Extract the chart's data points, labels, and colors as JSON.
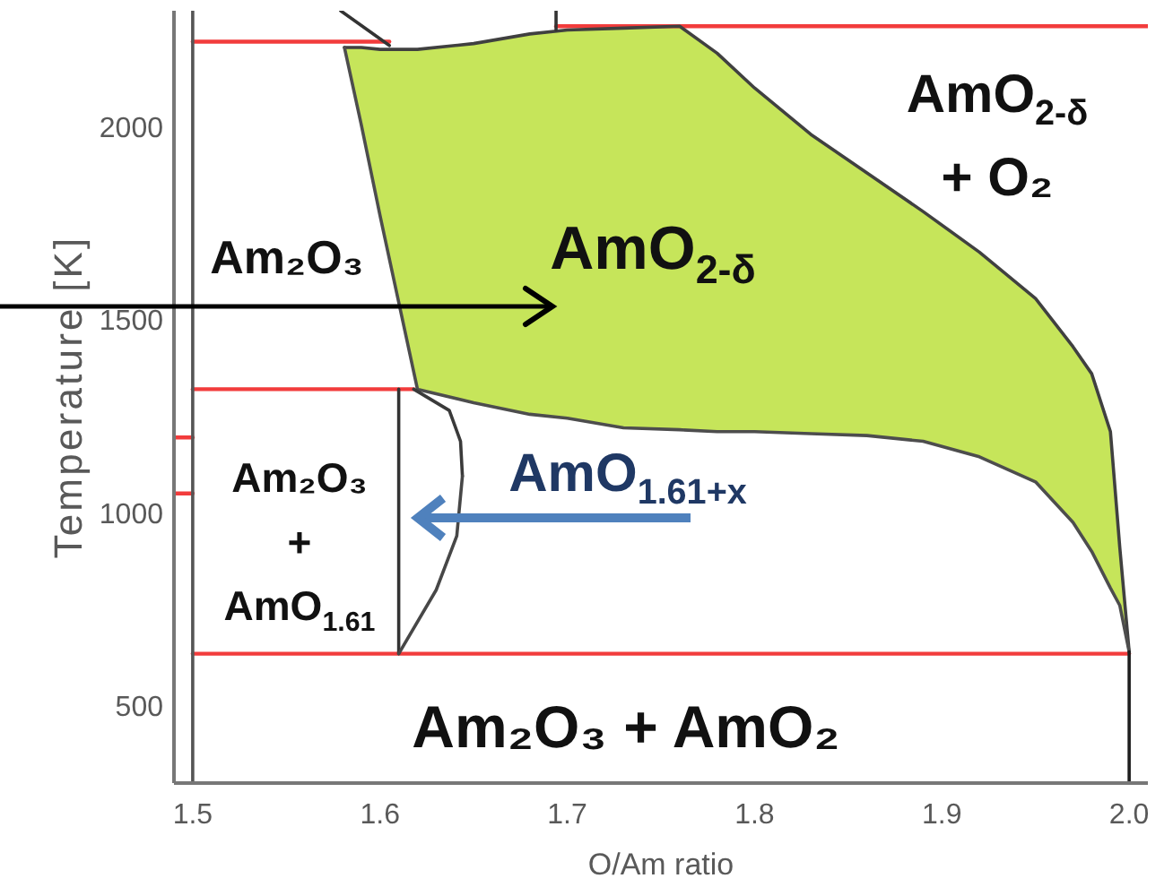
{
  "chart_data": {
    "type": "line",
    "xlabel": "O/Am ratio",
    "ylabel": "Temperature [K]",
    "xlim": [
      1.49,
      2.01
    ],
    "ylim": [
      300,
      2300
    ],
    "xticks": [
      1.5,
      1.6,
      1.7,
      1.8,
      1.9,
      {
        "value": 2.0,
        "label": "2.0"
      }
    ],
    "yticks": [
      500,
      1000,
      1500,
      2000
    ],
    "marker": "none",
    "series": [
      {
        "type": "area",
        "color": "#c6e55a",
        "x": [
          1.581,
          1.59,
          1.6,
          1.61,
          1.62,
          1.65,
          1.68,
          1.7,
          1.73,
          1.76,
          1.78,
          1.8,
          1.83,
          1.86,
          1.89,
          1.92,
          1.95,
          1.97,
          1.98,
          1.99,
          1.995,
          2.0
        ],
        "values": [
          null,
          null,
          null,
          null,
          null,
          null,
          null,
          null,
          null,
          null,
          null,
          null,
          null,
          null,
          null,
          null,
          null,
          null,
          null,
          null,
          null,
          null
        ],
        "lower": [
          2205,
          2005,
          1770,
          1545,
          1320,
          1285,
          1255,
          1245,
          1220,
          1215,
          1210,
          1210,
          1205,
          1200,
          1185,
          1145,
          1080,
          975,
          900,
          805,
          760,
          640
        ],
        "upper": [
          2205,
          2205,
          2200,
          2200,
          2200,
          2215,
          2240,
          2250,
          2255,
          2260,
          2190,
          2100,
          1980,
          1880,
          1780,
          1675,
          1555,
          1430,
          1360,
          1210,
          910,
          640
        ]
      },
      {
        "type": "line",
        "color": "#f23c3c",
        "x": [
          1.5,
          1.605
        ],
        "values": [
          2220,
          2220
        ]
      },
      {
        "type": "line",
        "color": "#f23c3c",
        "x": [
          1.694,
          2.01
        ],
        "values": [
          2260,
          2260
        ]
      },
      {
        "type": "line",
        "color": "#f23c3c",
        "x": [
          1.5,
          1.618
        ],
        "values": [
          1320,
          1320
        ]
      },
      {
        "type": "line",
        "color": "#f23c3c",
        "x": [
          1.5,
          2.0
        ],
        "values": [
          635,
          635
        ]
      },
      {
        "type": "line",
        "color": "#f23c3c",
        "x": [
          1.49,
          1.5
        ],
        "values": [
          1195,
          1195
        ]
      },
      {
        "type": "line",
        "color": "#f23c3c",
        "x": [
          1.49,
          1.5
        ],
        "values": [
          1050,
          1050
        ]
      },
      {
        "color": "#404040",
        "x": [
          1.581,
          1.59,
          1.6,
          1.61,
          1.62,
          1.65,
          1.68,
          1.7,
          1.73,
          1.76,
          1.78,
          1.8,
          1.83,
          1.86,
          1.89,
          1.92,
          1.95,
          1.97,
          1.98,
          1.99,
          1.995,
          2.0
        ],
        "values": [
          2205,
          2205,
          2200,
          2200,
          2200,
          2215,
          2240,
          2250,
          2255,
          2260,
          2190,
          2100,
          1980,
          1880,
          1780,
          1675,
          1555,
          1430,
          1360,
          1210,
          910,
          640
        ]
      },
      {
        "color": "#4d4d4d",
        "x": [
          1.581,
          1.59,
          1.6,
          1.61,
          1.62,
          1.65,
          1.68,
          1.7,
          1.73,
          1.76,
          1.78,
          1.8,
          1.83,
          1.86,
          1.89,
          1.92,
          1.95,
          1.97,
          1.98,
          1.99,
          1.995,
          2.0
        ],
        "values": [
          2205,
          2005,
          1770,
          1545,
          1320,
          1285,
          1255,
          1245,
          1220,
          1215,
          1210,
          1210,
          1205,
          1200,
          1185,
          1145,
          1080,
          975,
          900,
          805,
          760,
          640
        ]
      },
      {
        "color": "#555555",
        "x": [
          1.5,
          1.5
        ],
        "values": [
          300,
          2300
        ]
      },
      {
        "color": "#1e1e1e",
        "x": [
          2.0,
          2.0
        ],
        "values": [
          640,
          300
        ]
      },
      {
        "color": "#333333",
        "x": [
          1.61,
          1.61
        ],
        "values": [
          635,
          1320
        ]
      },
      {
        "color": "#3a3a3a",
        "x": [
          1.618,
          1.637,
          1.643,
          1.644
        ],
        "values": [
          1320,
          1265,
          1185,
          1095
        ]
      },
      {
        "color": "#474747",
        "x": [
          1.61,
          1.63,
          1.641,
          1.644
        ],
        "values": [
          635,
          800,
          940,
          1095
        ]
      },
      {
        "color": "#333333",
        "x": [
          1.579,
          1.605
        ],
        "values": [
          2300,
          2210
        ]
      },
      {
        "color": "#333333",
        "x": [
          1.694,
          1.694
        ],
        "values": [
          2250,
          2300
        ]
      }
    ],
    "annotations": [
      "Am₂O₃",
      "AmO$_{2-δ}$",
      "AmO$_{2-δ}$\n+ O₂",
      "Am₂O₃\n+\nAmO$_{1.61}$",
      "AmO$_{1.61+x}$",
      "Am₂O₃ + AmO₂"
    ]
  }
}
